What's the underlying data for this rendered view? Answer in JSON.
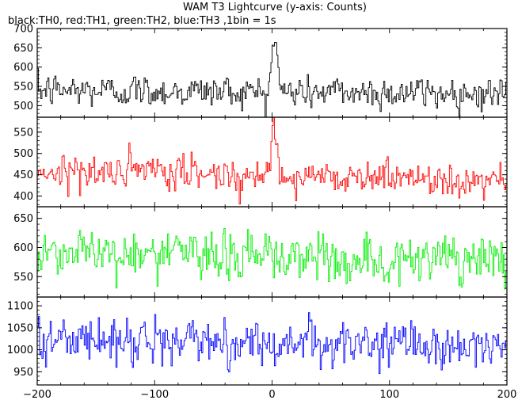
{
  "chart_data": {
    "type": "line",
    "title": "WAM T3 Lightcurve (y-axis: Counts)",
    "subtitle": "black:TH0, red:TH1, green:TH2, blue:TH3 ,1bin = 1s",
    "xlim": [
      -200,
      200
    ],
    "x_ticks": [
      -200,
      -100,
      0,
      100,
      200
    ],
    "x_tick_labels": [
      "−200",
      "−100",
      "0",
      "100",
      "200"
    ],
    "bin_size_s": 1,
    "grid": false,
    "panels": [
      {
        "series": "TH0",
        "color": "#000000",
        "ylim": [
          470,
          700
        ],
        "y_ticks": [
          500,
          550,
          600,
          650,
          700
        ],
        "y_tick_labels": [
          "500",
          "550",
          "600",
          "650",
          "700"
        ],
        "baseline": 540,
        "noise": 24,
        "trend": -8,
        "peak": {
          "center": 2,
          "width": 2.2,
          "height": 145
        }
      },
      {
        "series": "TH1",
        "color": "#ff0000",
        "ylim": [
          375,
          585
        ],
        "y_ticks": [
          400,
          450,
          500,
          550
        ],
        "y_tick_labels": [
          "400",
          "450",
          "500",
          "550"
        ],
        "baseline": 460,
        "noise": 22,
        "trend": -22,
        "peak": {
          "center": 2,
          "width": 2.5,
          "height": 100
        }
      },
      {
        "series": "TH2",
        "color": "#00ee00",
        "ylim": [
          515,
          670
        ],
        "y_ticks": [
          550,
          600,
          650
        ],
        "y_tick_labels": [
          "550",
          "600",
          "650"
        ],
        "baseline": 595,
        "noise": 24,
        "trend": -22,
        "peak": {
          "center": 0,
          "width": 1,
          "height": 0
        }
      },
      {
        "series": "TH3",
        "color": "#0000ff",
        "ylim": [
          920,
          1120
        ],
        "y_ticks": [
          950,
          1000,
          1050,
          1100
        ],
        "y_tick_labels": [
          "950",
          "1000",
          "1050",
          "1100"
        ],
        "baseline": 1025,
        "noise": 28,
        "trend": -18,
        "peak": {
          "center": 0,
          "width": 1,
          "height": 0
        }
      }
    ]
  }
}
